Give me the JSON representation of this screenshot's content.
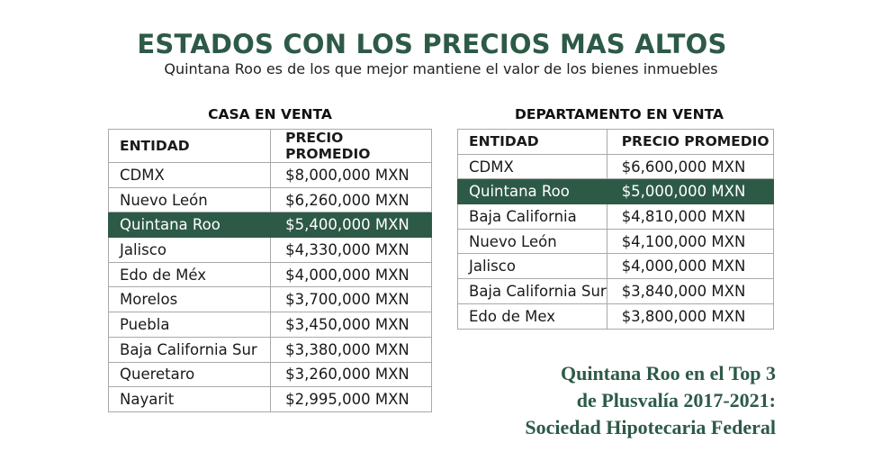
{
  "header": {
    "title": "ESTADOS CON LOS PRECIOS MAS ALTOS",
    "subtitle": "Quintana Roo es de los que mejor mantiene el valor de los bienes inmuebles"
  },
  "casa": {
    "title": "CASA EN VENTA",
    "col_entidad": "ENTIDAD",
    "col_precio": "PRECIO PROMEDIO",
    "rows": [
      {
        "entidad": "CDMX",
        "precio": "$8,000,000 MXN"
      },
      {
        "entidad": "Nuevo León",
        "precio": "$6,260,000 MXN"
      },
      {
        "entidad": "Quintana Roo",
        "precio": "$5,400,000 MXN"
      },
      {
        "entidad": "Jalisco",
        "precio": "$4,330,000 MXN"
      },
      {
        "entidad": "Edo de Méx",
        "precio": "$4,000,000 MXN"
      },
      {
        "entidad": "Morelos",
        "precio": "$3,700,000 MXN"
      },
      {
        "entidad": "Puebla",
        "precio": "$3,450,000 MXN"
      },
      {
        "entidad": "Baja California Sur",
        "precio": "$3,380,000 MXN"
      },
      {
        "entidad": "Queretaro",
        "precio": "$3,260,000 MXN"
      },
      {
        "entidad": "Nayarit",
        "precio": "$2,995,000 MXN"
      }
    ]
  },
  "departamento": {
    "title": "DEPARTAMENTO EN VENTA",
    "col_entidad": "ENTIDAD",
    "col_precio": "PRECIO PROMEDIO",
    "rows": [
      {
        "entidad": "CDMX",
        "precio": "$6,600,000 MXN"
      },
      {
        "entidad": "Quintana Roo",
        "precio": "$5,000,000 MXN"
      },
      {
        "entidad": "Baja California",
        "precio": "$4,810,000 MXN"
      },
      {
        "entidad": "Nuevo León",
        "precio": "$4,100,000 MXN"
      },
      {
        "entidad": "Jalisco",
        "precio": "$4,000,000 MXN"
      },
      {
        "entidad": "Baja California Sur",
        "precio": "$3,840,000 MXN"
      },
      {
        "entidad": "Edo de Mex",
        "precio": "$3,800,000 MXN"
      }
    ]
  },
  "note": {
    "line1": "Quintana Roo en el Top 3",
    "line2": "de Plusvalía 2017-2021:",
    "line3": "Sociedad Hipotecaria Federal"
  },
  "colors": {
    "accent": "#2d5a47",
    "highlight_text": "#ffffff",
    "border": "#a9a9a9"
  }
}
